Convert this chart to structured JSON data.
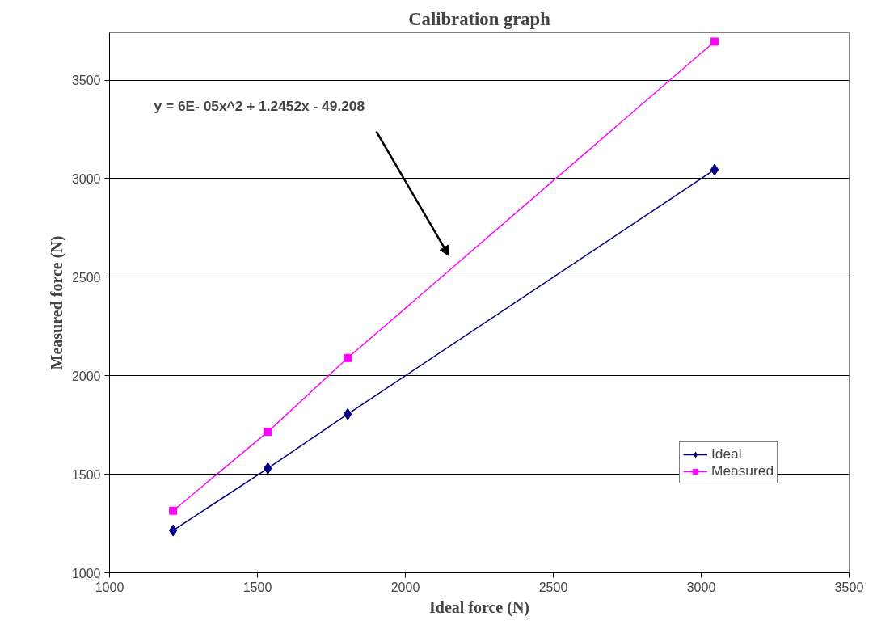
{
  "chart_data": {
    "type": "line",
    "title": "Calibration graph",
    "xlabel": "Ideal force (N)",
    "ylabel": "Measured force (N)",
    "series": [
      {
        "name": "Ideal",
        "color": "#000080",
        "marker": "diamond",
        "x": [
          1215,
          1535,
          1805,
          3045
        ],
        "values": [
          1215,
          1530,
          1805,
          3045
        ]
      },
      {
        "name": "Measured",
        "color": "#ff00ff",
        "marker": "square",
        "x": [
          1215,
          1535,
          1805,
          3045
        ],
        "values": [
          1315,
          1715,
          2090,
          3695
        ]
      }
    ],
    "annotations": [
      "y = 6E- 05x^2 + 1.2452x - 49.208"
    ],
    "xlim": [
      1000,
      3500
    ],
    "ylim": [
      1000,
      3740
    ],
    "xticks": [
      1000,
      1500,
      2000,
      2500,
      3000,
      3500
    ],
    "yticks": [
      1000,
      1500,
      2000,
      2500,
      3000,
      3500
    ],
    "grid": "y",
    "legend": "bottom right"
  }
}
